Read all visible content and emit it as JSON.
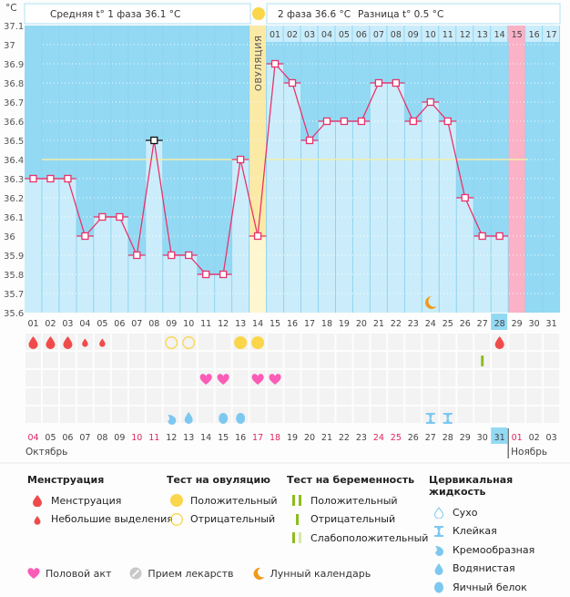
{
  "header": {
    "unit": "°C",
    "phase1_avg": "Средняя t° 1 фаза 36.1 °C",
    "phase2_avg": "2 фаза 36.6 °C",
    "difference": "Разница t° 0.5 °C",
    "ovulation_label": "ОВУЛЯЦИЯ"
  },
  "colors": {
    "plot_bg": "#93d9f3",
    "bar_fill": "#cbedfb",
    "line": "#e8336b",
    "ovulation_band": "#fbe9a6",
    "ovulation_band_light": "#fdf6cf",
    "period_band": "#fbb1c6",
    "coverline": "#f3eeaa",
    "highlight_cell": "#93d9f3",
    "weekend_red": "#e0245e",
    "menstruation": "#f04b4b",
    "ovulation_pos": "#fbd54a",
    "pregnancy_green": "#8ebc1d",
    "pregnancy_light": "#d4e8a8",
    "heart": "#fb5cb6",
    "cervical_blue": "#7dc8f0",
    "moon": "#f09a1a",
    "pill": "#c8c8c8"
  },
  "chart_data": {
    "type": "line",
    "title": "",
    "ylabel": "°C",
    "ylim": [
      35.6,
      37.1
    ],
    "yticks": [
      37.1,
      37,
      36.9,
      36.8,
      36.7,
      36.6,
      36.5,
      36.4,
      36.3,
      36.2,
      36.1,
      36,
      35.9,
      35.8,
      35.7,
      35.6
    ],
    "cycle_days": [
      "01",
      "02",
      "03",
      "04",
      "05",
      "06",
      "07",
      "08",
      "09",
      "10",
      "11",
      "12",
      "13",
      "14",
      "15",
      "16",
      "17",
      "18",
      "19",
      "20",
      "21",
      "22",
      "23",
      "24",
      "25",
      "26",
      "27",
      "28",
      "29",
      "30",
      "31"
    ],
    "post_ovulation_days": [
      "01",
      "02",
      "03",
      "04",
      "05",
      "06",
      "07",
      "08",
      "09",
      "10",
      "11",
      "12",
      "13",
      "14",
      "15",
      "16",
      "17"
    ],
    "temperatures": [
      36.3,
      36.3,
      36.3,
      36.0,
      36.1,
      36.1,
      35.9,
      36.5,
      35.9,
      35.9,
      35.8,
      35.8,
      36.4,
      36.0,
      36.9,
      36.8,
      36.5,
      36.6,
      36.6,
      36.6,
      36.8,
      36.8,
      36.6,
      36.7,
      36.6,
      36.2,
      36.0,
      36.0
    ],
    "excluded_day": 8,
    "coverline": 36.4,
    "ovulation_day": 14,
    "next_period_day": 29,
    "current_cycle_day": 28,
    "moon_day": 24,
    "calendar_dates": [
      "04",
      "05",
      "06",
      "07",
      "08",
      "09",
      "10",
      "11",
      "12",
      "13",
      "14",
      "15",
      "16",
      "17",
      "18",
      "19",
      "20",
      "21",
      "22",
      "23",
      "24",
      "25",
      "26",
      "27",
      "28",
      "29",
      "30",
      "31",
      "01",
      "02",
      "03"
    ],
    "weekend_dates_idx": [
      0,
      6,
      7,
      13,
      14,
      20,
      21,
      28
    ],
    "today_idx": 27,
    "month_start": {
      "label": "Октябрь"
    },
    "month_change": {
      "label": "Ноябрь",
      "after_idx": 27
    },
    "events": {
      "menstruation": [
        {
          "day": 1,
          "size": "big"
        },
        {
          "day": 2,
          "size": "big"
        },
        {
          "day": 3,
          "size": "big"
        },
        {
          "day": 4,
          "size": "small"
        },
        {
          "day": 5,
          "size": "small"
        },
        {
          "day": 28,
          "size": "big"
        }
      ],
      "ovulation_test": [
        {
          "day": 9,
          "result": "negative"
        },
        {
          "day": 10,
          "result": "negative"
        },
        {
          "day": 13,
          "result": "positive"
        },
        {
          "day": 14,
          "result": "positive"
        }
      ],
      "pregnancy_test": [
        {
          "day": 27,
          "result": "negative"
        }
      ],
      "intercourse": [
        11,
        12,
        14,
        15
      ],
      "cervical_fluid": [
        {
          "day": 9,
          "type": "creamy"
        },
        {
          "day": 10,
          "type": "watery"
        },
        {
          "day": 12,
          "type": "egg_white"
        },
        {
          "day": 13,
          "type": "egg_white"
        },
        {
          "day": 24,
          "type": "sticky"
        },
        {
          "day": 25,
          "type": "sticky"
        }
      ]
    }
  },
  "legend": {
    "menstruation": {
      "title": "Менструация",
      "items": [
        "Менструация",
        "Небольшие выделения"
      ]
    },
    "ovulation_test": {
      "title": "Тест на овуляцию",
      "items": [
        "Положительный",
        "Отрицательный"
      ]
    },
    "pregnancy_test": {
      "title": "Тест на беременность",
      "items": [
        "Положительный",
        "Отрицательный",
        "Слабоположительный"
      ]
    },
    "cervical_fluid": {
      "title": "Цервикальная жидкость",
      "items": [
        "Сухо",
        "Клейкая",
        "Кремообразная",
        "Водянистая",
        "Яичный белок"
      ]
    },
    "other": [
      {
        "icon": "heart-icon",
        "label": "Половой акт"
      },
      {
        "icon": "pill-icon",
        "label": "Прием лекарств"
      },
      {
        "icon": "moon-icon",
        "label": "Лунный календарь"
      }
    ]
  }
}
